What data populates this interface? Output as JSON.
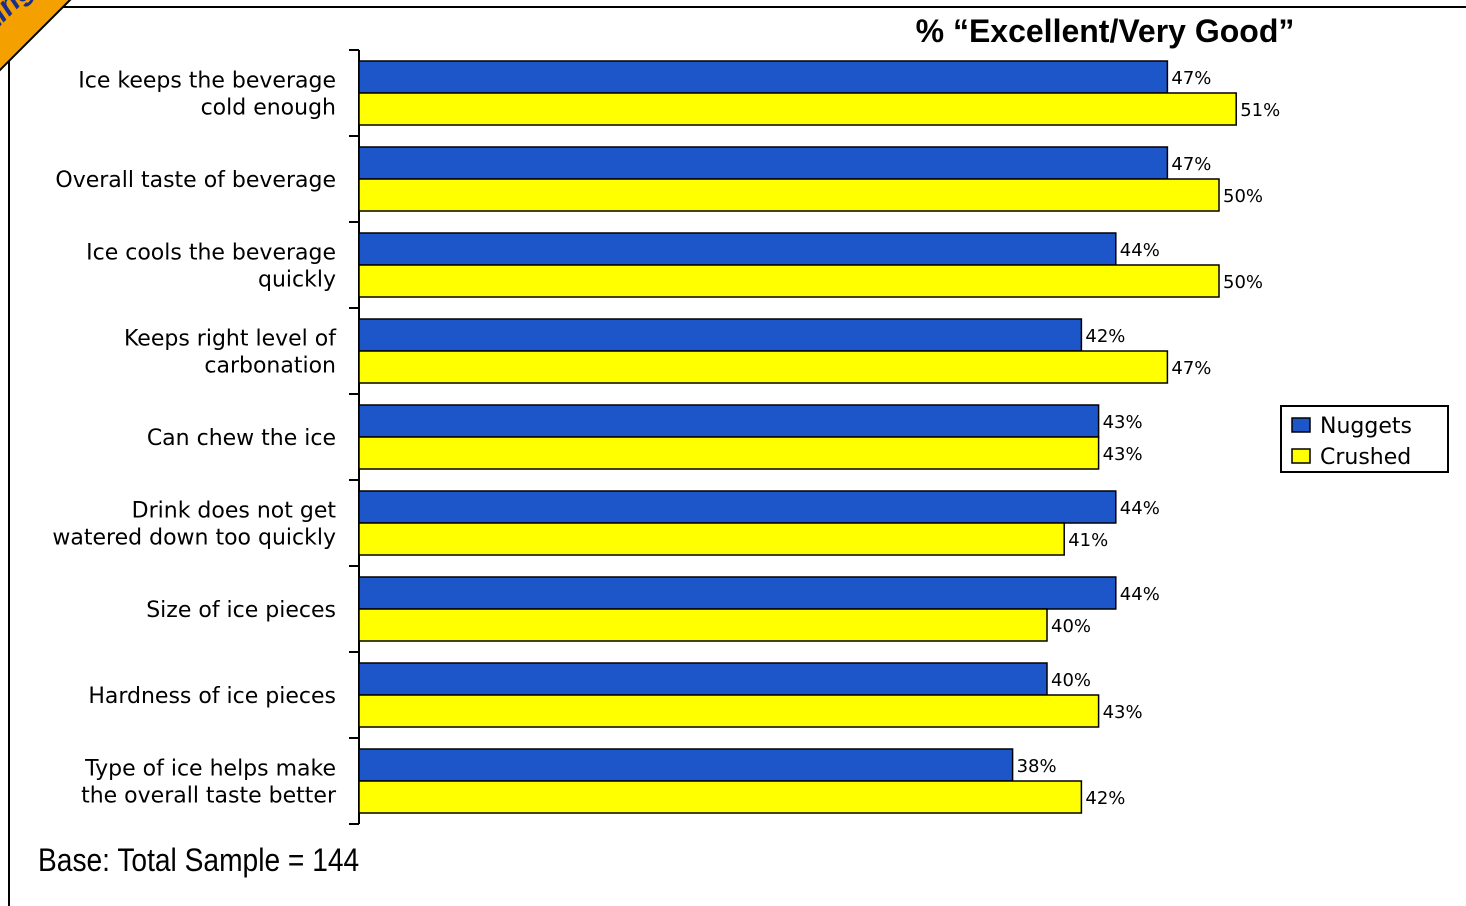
{
  "corner_text": "ting",
  "base_note": "Base:  Total Sample = 144",
  "chart_data": {
    "type": "bar",
    "orientation": "horizontal",
    "title": "% “Excellent/Very Good”",
    "categories": [
      [
        "Ice keeps the beverage",
        "cold enough"
      ],
      [
        "Overall taste of beverage"
      ],
      [
        "Ice cools the beverage",
        "quickly"
      ],
      [
        "Keeps right level of",
        "carbonation"
      ],
      [
        "Can chew the ice"
      ],
      [
        "Drink does not get",
        "watered down too quickly"
      ],
      [
        "Size of ice pieces"
      ],
      [
        "Hardness of ice pieces"
      ],
      [
        "Type of ice helps make",
        "the overall taste better"
      ]
    ],
    "series": [
      {
        "name": "Nuggets",
        "color": "#1c56c8",
        "values": [
          47,
          47,
          44,
          42,
          43,
          44,
          44,
          40,
          38
        ],
        "labels": [
          "47%",
          "47%",
          "44%",
          "42%",
          "43%",
          "44%",
          "44%",
          "40%",
          "38%"
        ]
      },
      {
        "name": "Crushed",
        "color": "#ffff00",
        "values": [
          51,
          50,
          50,
          47,
          43,
          41,
          40,
          43,
          42
        ],
        "labels": [
          "51%",
          "50%",
          "50%",
          "47%",
          "43%",
          "41%",
          "40%",
          "43%",
          "42%"
        ]
      }
    ],
    "xlim": [
      0,
      100
    ],
    "legend_position": "right",
    "grid": false
  }
}
